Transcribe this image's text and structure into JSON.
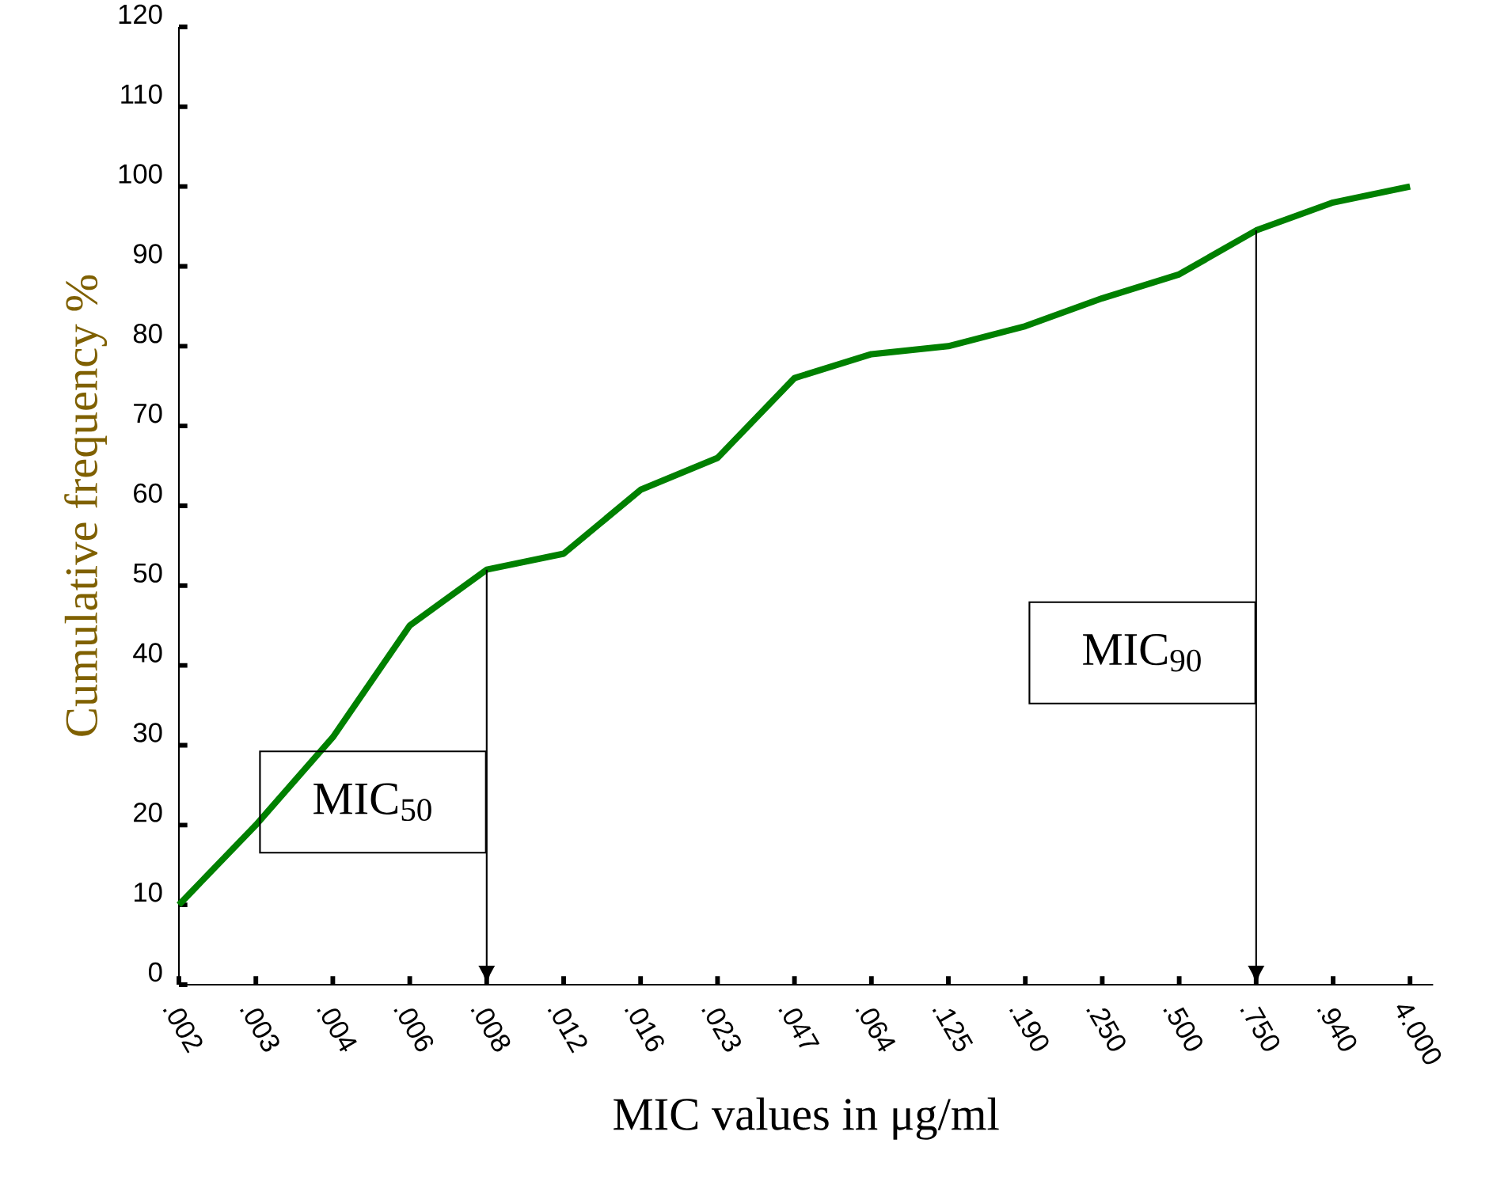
{
  "chart_data": {
    "type": "line",
    "xlabel": "MIC values in μg/ml",
    "ylabel": "Cumulative frequency %",
    "categories": [
      ".002",
      ".003",
      ".004",
      ".006",
      ".008",
      ".012",
      ".016",
      ".023",
      ".047",
      ".064",
      ".125",
      ".190",
      ".250",
      ".500",
      ".750",
      ".940",
      "4.000"
    ],
    "series": [
      {
        "color": "#008000",
        "values": [
          10,
          20,
          31,
          45,
          52,
          54,
          62,
          66,
          76,
          79,
          80,
          82.5,
          86,
          89,
          94.5,
          98,
          100
        ]
      }
    ],
    "ylim": [
      0,
      120
    ],
    "yticks": [
      0,
      10,
      20,
      30,
      40,
      50,
      60,
      70,
      80,
      90,
      100,
      110,
      120
    ],
    "grid": false,
    "marker": "none",
    "line_style": "solid",
    "ref_lines": [
      {
        "axis": "x",
        "value": ".008",
        "label": "MIC$_{50}$"
      },
      {
        "axis": "x",
        "value": ".750",
        "label": "MIC$_{90}$"
      }
    ]
  }
}
